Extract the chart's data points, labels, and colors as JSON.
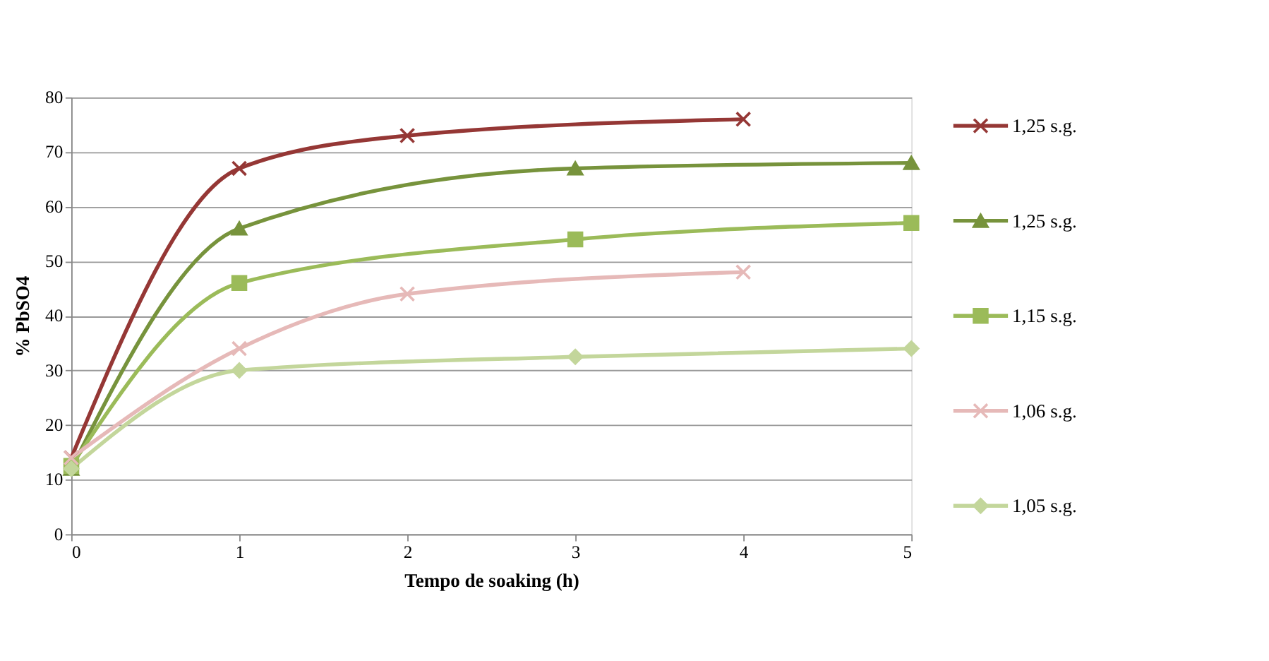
{
  "chart_data": {
    "type": "line",
    "xlabel": "Tempo de soaking (h)",
    "ylabel": "% PbSO4",
    "xlim": [
      0,
      5
    ],
    "xticks": [
      0,
      1,
      2,
      3,
      4,
      5
    ],
    "ylim": [
      0,
      80
    ],
    "yticks": [
      0,
      10,
      20,
      30,
      40,
      50,
      60,
      70,
      80
    ],
    "grid": "y",
    "legend": "right",
    "line_style": "solid",
    "series": [
      {
        "name": "1,25 s.g.",
        "color": "#953735",
        "marker": "cross",
        "x": [
          0,
          1,
          2,
          4
        ],
        "values": [
          14,
          67,
          73,
          76
        ]
      },
      {
        "name": "1,25 s.g.",
        "color": "#77933c",
        "marker": "triangle",
        "x": [
          0,
          1,
          3,
          5
        ],
        "values": [
          12,
          56,
          67,
          68
        ]
      },
      {
        "name": "1,15 s.g.",
        "color": "#9bbb59",
        "marker": "square",
        "x": [
          0,
          1,
          3,
          5
        ],
        "values": [
          12.5,
          46,
          54,
          57
        ]
      },
      {
        "name": "1,06 s.g.",
        "color": "#e6b9b8",
        "marker": "cross",
        "x": [
          0,
          1,
          2,
          4
        ],
        "values": [
          14,
          34,
          44,
          48
        ]
      },
      {
        "name": "1,05 s.g.",
        "color": "#c3d69b",
        "marker": "diamond",
        "x": [
          0,
          1,
          3,
          5
        ],
        "values": [
          12,
          30,
          32.5,
          34
        ]
      }
    ]
  }
}
